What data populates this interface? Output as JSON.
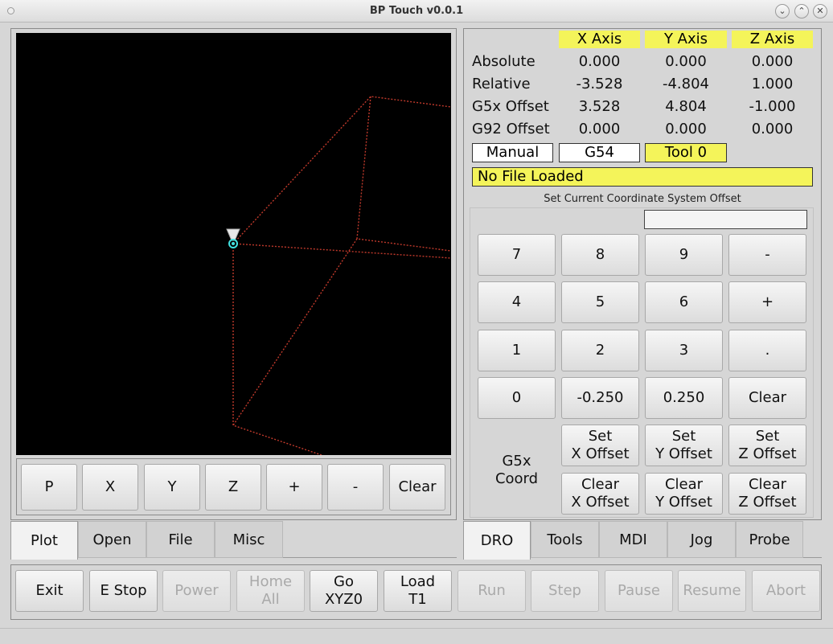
{
  "window": {
    "title": "BP Touch v0.0.1"
  },
  "plot_toolbar": [
    "P",
    "X",
    "Y",
    "Z",
    "+",
    "-",
    "Clear"
  ],
  "dro": {
    "headers": [
      "X Axis",
      "Y Axis",
      "Z Axis"
    ],
    "rows": [
      {
        "label": "Absolute",
        "values": [
          "0.000",
          "0.000",
          "0.000"
        ]
      },
      {
        "label": "Relative",
        "values": [
          "-3.528",
          "-4.804",
          "1.000"
        ]
      },
      {
        "label": "G5x Offset",
        "values": [
          "3.528",
          "4.804",
          "-1.000"
        ]
      },
      {
        "label": "G92 Offset",
        "values": [
          "0.000",
          "0.000",
          "0.000"
        ]
      }
    ],
    "mode": "Manual",
    "coord_system": "G54",
    "tool": "Tool 0",
    "file_status": "No File Loaded"
  },
  "offset_panel": {
    "title": "Set Current Coordinate System Offset",
    "entry_value": "",
    "keypad": [
      [
        "7",
        "8",
        "9",
        "-"
      ],
      [
        "4",
        "5",
        "6",
        "+"
      ],
      [
        "1",
        "2",
        "3",
        "."
      ],
      [
        "0",
        "-0.250",
        "0.250",
        "Clear"
      ]
    ],
    "coord_label": "G5x\nCoord",
    "set_buttons": [
      "Set\nX Offset",
      "Set\nY Offset",
      "Set\nZ Offset"
    ],
    "clear_buttons": [
      "Clear\nX Offset",
      "Clear\nY Offset",
      "Clear\nZ Offset"
    ]
  },
  "left_tabs": [
    "Plot",
    "Open",
    "File",
    "Misc"
  ],
  "right_tabs": [
    "DRO",
    "Tools",
    "MDI",
    "Jog",
    "Probe"
  ],
  "bottom_buttons": [
    {
      "label": "Exit",
      "enabled": true
    },
    {
      "label": "E Stop",
      "enabled": true
    },
    {
      "label": "Power",
      "enabled": false
    },
    {
      "label": "Home\nAll",
      "enabled": false
    },
    {
      "label": "Go\nXYZ0",
      "enabled": true
    },
    {
      "label": "Load\nT1",
      "enabled": true
    },
    {
      "label": "Run",
      "enabled": false
    },
    {
      "label": "Step",
      "enabled": false
    },
    {
      "label": "Pause",
      "enabled": false
    },
    {
      "label": "Resume",
      "enabled": false
    },
    {
      "label": "Abort",
      "enabled": false
    }
  ],
  "colors": {
    "highlight": "#f4f45a",
    "plot_bg": "#000000",
    "toolpath": "#c0392b",
    "tool_marker": "#40e0e0"
  }
}
